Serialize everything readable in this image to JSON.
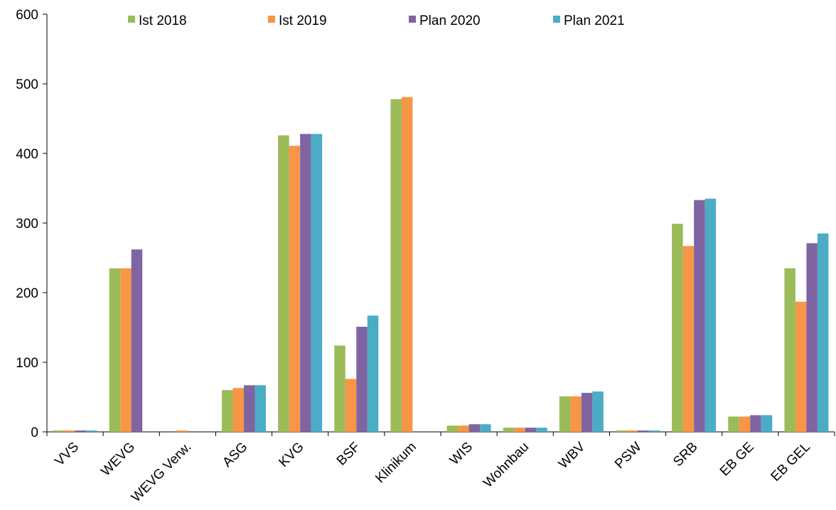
{
  "chart_data": {
    "type": "bar",
    "title": "",
    "xlabel": "",
    "ylabel": "",
    "ylim": [
      0,
      600
    ],
    "yticks": [
      0,
      100,
      200,
      300,
      400,
      500,
      600
    ],
    "grid": false,
    "legend_position": "top",
    "categories": [
      "VVS",
      "WEVG",
      "WEVG Verw.",
      "ASG",
      "KVG",
      "BSF",
      "Klinikum",
      "WIS",
      "Wohnbau",
      "WBV",
      "PSW",
      "SRB",
      "EB GE",
      "EB GEL"
    ],
    "series": [
      {
        "name": "Ist 2018",
        "color": "#9BBB59",
        "values": [
          2,
          235,
          0,
          60,
          426,
          124,
          478,
          9,
          6,
          51,
          2,
          299,
          22,
          235
        ]
      },
      {
        "name": "Ist 2019",
        "color": "#F79646",
        "values": [
          2,
          235,
          2,
          63,
          411,
          76,
          481,
          9,
          6,
          51,
          2,
          267,
          22,
          187
        ]
      },
      {
        "name": "Plan 2020",
        "color": "#8064A2",
        "values": [
          2,
          262,
          0,
          67,
          428,
          151,
          0,
          11,
          6,
          56,
          2,
          333,
          24,
          271
        ]
      },
      {
        "name": "Plan 2021",
        "color": "#4BACC6",
        "values": [
          2,
          0,
          0,
          67,
          428,
          167,
          0,
          11,
          6,
          58,
          2,
          335,
          24,
          285
        ]
      }
    ]
  }
}
